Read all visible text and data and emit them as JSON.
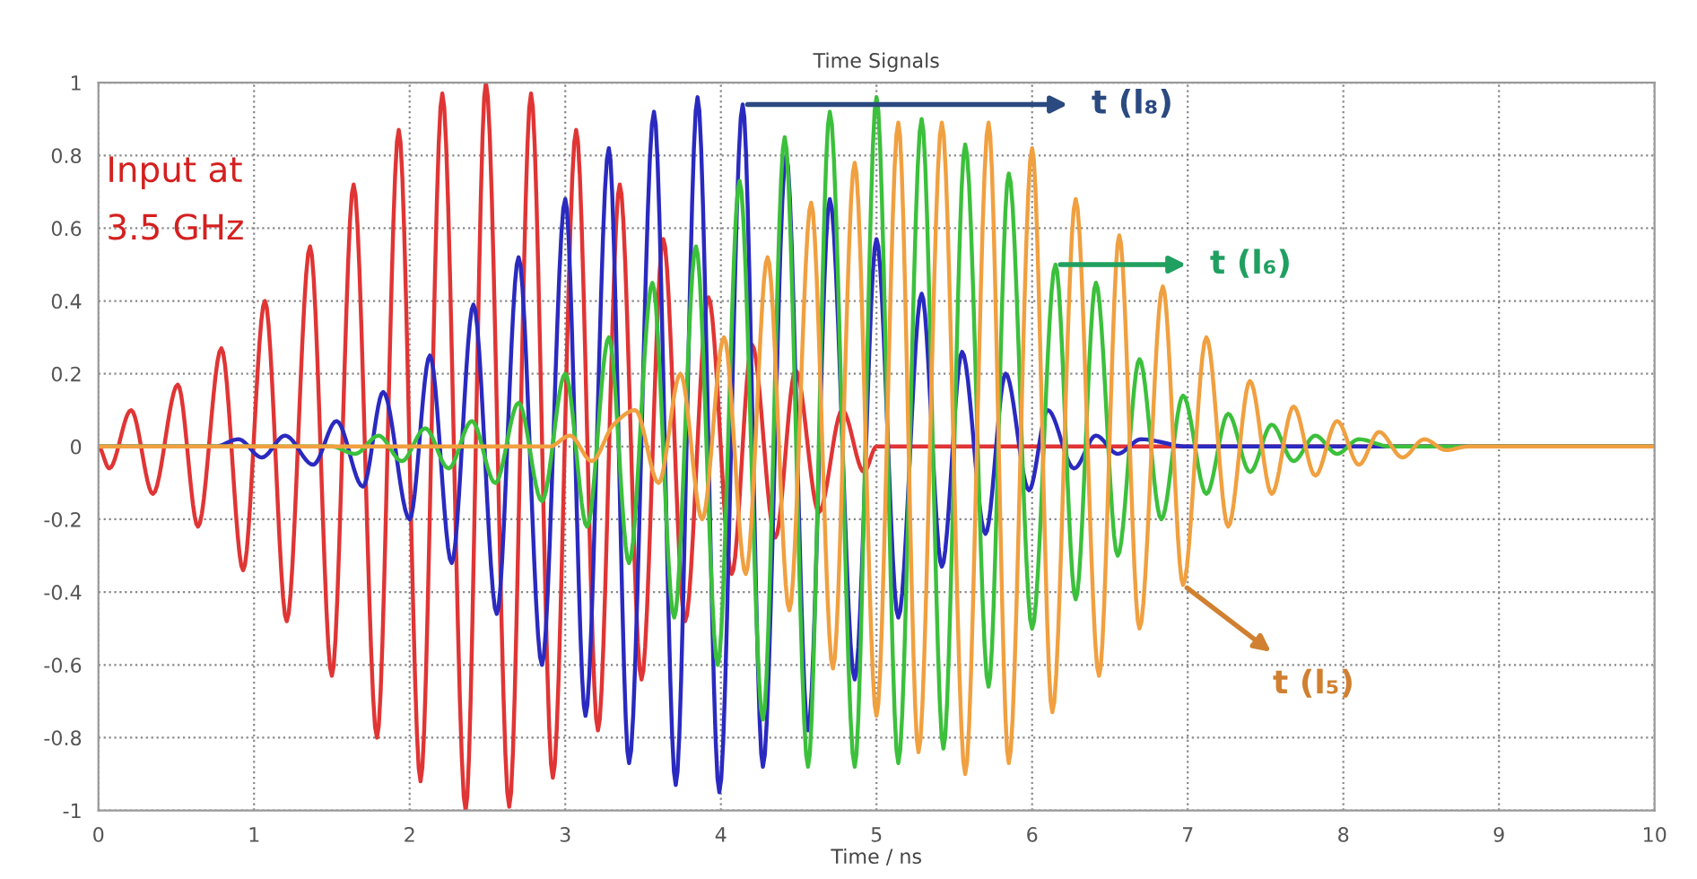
{
  "chart_data": {
    "type": "line",
    "title": "Time Signals",
    "xlabel": "Time / ns",
    "xlim": [
      0,
      10
    ],
    "xticks": [
      0,
      1,
      2,
      3,
      4,
      5,
      6,
      7,
      8,
      9,
      10
    ],
    "ylim": [
      -1,
      1
    ],
    "yticks": [
      -1,
      -0.8,
      -0.6,
      -0.4,
      -0.2,
      0,
      0.2,
      0.4,
      0.6,
      0.8,
      1
    ],
    "grid": true,
    "legend": false,
    "marker": "none",
    "line_style": "solid",
    "series": [
      {
        "color": "#e03535",
        "x": [
          0,
          0.07,
          0.21,
          0.35,
          0.51,
          0.64,
          0.79,
          0.93,
          1.07,
          1.21,
          1.36,
          1.5,
          1.64,
          1.79,
          1.93,
          2.07,
          2.21,
          2.36,
          2.49,
          2.64,
          2.78,
          2.92,
          3.07,
          3.21,
          3.35,
          3.49,
          3.63,
          3.77,
          3.92,
          4.07,
          4.2,
          4.35,
          4.48,
          4.63,
          4.78,
          4.92,
          5.0,
          10
        ],
        "values": [
          0,
          -0.06,
          0.1,
          -0.13,
          0.17,
          -0.22,
          0.27,
          -0.34,
          0.4,
          -0.48,
          0.55,
          -0.63,
          0.72,
          -0.8,
          0.87,
          -0.92,
          0.97,
          -1.0,
          1.0,
          -0.99,
          0.97,
          -0.91,
          0.87,
          -0.78,
          0.72,
          -0.64,
          0.57,
          -0.48,
          0.41,
          -0.35,
          0.28,
          -0.25,
          0.21,
          -0.18,
          0.1,
          -0.07,
          0,
          0
        ]
      },
      {
        "color": "#2a2ac0",
        "x": [
          0,
          0.75,
          0.9,
          1.05,
          1.2,
          1.38,
          1.53,
          1.7,
          1.83,
          2.0,
          2.13,
          2.27,
          2.41,
          2.56,
          2.7,
          2.85,
          3.0,
          3.13,
          3.28,
          3.41,
          3.57,
          3.71,
          3.85,
          3.99,
          4.14,
          4.27,
          4.42,
          4.56,
          4.7,
          4.86,
          5.0,
          5.14,
          5.29,
          5.42,
          5.55,
          5.7,
          5.83,
          5.98,
          6.1,
          6.27,
          6.41,
          6.55,
          6.7,
          7.0,
          10
        ],
        "values": [
          0,
          0,
          0.02,
          -0.03,
          0.03,
          -0.05,
          0.07,
          -0.11,
          0.15,
          -0.2,
          0.25,
          -0.32,
          0.39,
          -0.46,
          0.52,
          -0.6,
          0.68,
          -0.74,
          0.82,
          -0.87,
          0.92,
          -0.93,
          0.96,
          -0.95,
          0.94,
          -0.88,
          0.8,
          -0.78,
          0.68,
          -0.64,
          0.57,
          -0.47,
          0.42,
          -0.33,
          0.26,
          -0.24,
          0.2,
          -0.12,
          0.1,
          -0.06,
          0.03,
          -0.02,
          0.02,
          0,
          0
        ]
      },
      {
        "color": "#3cc03c",
        "x": [
          0,
          1.5,
          1.65,
          1.8,
          1.95,
          2.1,
          2.25,
          2.4,
          2.55,
          2.7,
          2.85,
          3.0,
          3.14,
          3.28,
          3.41,
          3.56,
          3.7,
          3.84,
          3.98,
          4.12,
          4.27,
          4.41,
          4.56,
          4.7,
          4.86,
          5.0,
          5.14,
          5.29,
          5.43,
          5.57,
          5.72,
          5.85,
          6.0,
          6.15,
          6.28,
          6.41,
          6.55,
          6.69,
          6.83,
          6.97,
          7.12,
          7.26,
          7.4,
          7.54,
          7.68,
          7.82,
          7.96,
          8.1,
          8.3,
          10
        ],
        "values": [
          0,
          0,
          -0.02,
          0.03,
          -0.04,
          0.05,
          -0.06,
          0.07,
          -0.1,
          0.12,
          -0.15,
          0.2,
          -0.22,
          0.3,
          -0.32,
          0.45,
          -0.47,
          0.55,
          -0.6,
          0.73,
          -0.75,
          0.85,
          -0.88,
          0.92,
          -0.88,
          0.96,
          -0.87,
          0.9,
          -0.83,
          0.83,
          -0.66,
          0.75,
          -0.5,
          0.5,
          -0.42,
          0.45,
          -0.3,
          0.24,
          -0.2,
          0.14,
          -0.13,
          0.09,
          -0.07,
          0.06,
          -0.04,
          0.03,
          -0.02,
          0.02,
          0,
          0
        ]
      },
      {
        "color": "#f0a040",
        "x": [
          0,
          2.9,
          3.03,
          3.17,
          3.31,
          3.45,
          3.6,
          3.74,
          3.88,
          4.02,
          4.16,
          4.3,
          4.44,
          4.58,
          4.72,
          4.86,
          5.0,
          5.14,
          5.27,
          5.42,
          5.57,
          5.72,
          5.85,
          6.0,
          6.13,
          6.28,
          6.43,
          6.56,
          6.69,
          6.84,
          6.97,
          7.12,
          7.26,
          7.4,
          7.54,
          7.68,
          7.82,
          7.96,
          8.1,
          8.23,
          8.38,
          8.52,
          8.66,
          8.8,
          10
        ],
        "values": [
          0,
          0,
          0.03,
          -0.04,
          0.06,
          0.1,
          -0.1,
          0.2,
          -0.2,
          0.3,
          -0.35,
          0.52,
          -0.45,
          0.67,
          -0.61,
          0.78,
          -0.74,
          0.89,
          -0.84,
          0.89,
          -0.9,
          0.89,
          -0.87,
          0.82,
          -0.73,
          0.68,
          -0.63,
          0.58,
          -0.5,
          0.44,
          -0.38,
          0.3,
          -0.22,
          0.18,
          -0.13,
          0.11,
          -0.08,
          0.07,
          -0.05,
          0.04,
          -0.03,
          0.02,
          -0.01,
          0,
          0
        ]
      }
    ],
    "annotations": [
      "Input at\n3.5 GHz",
      {
        "text": "t (l₈)",
        "x": 4.14,
        "y": 0.94
      },
      {
        "text": "t (l₆)",
        "x": 6.15,
        "y": 0.5
      },
      {
        "text": "t (l₅)",
        "x": 6.97,
        "y": -0.38
      }
    ]
  }
}
